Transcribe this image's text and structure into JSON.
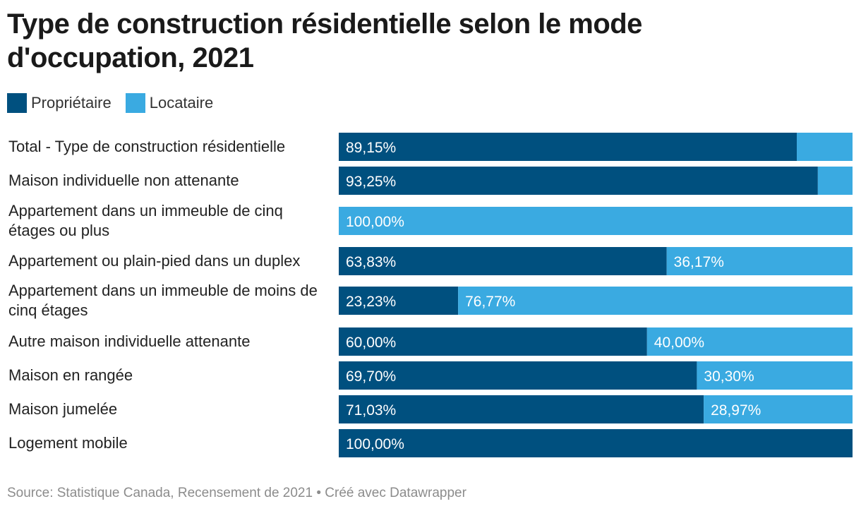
{
  "title": "Type de construction résidentielle selon le mode d'occupation, 2021",
  "legend": [
    {
      "label": "Propriétaire",
      "color": "#00507f"
    },
    {
      "label": "Locataire",
      "color": "#3aaae1"
    }
  ],
  "source": "Source: Statistique Canada, Recensement de 2021 • Créé avec Datawrapper",
  "chart_data": {
    "type": "bar",
    "orientation": "horizontal",
    "stacked": true,
    "percent_stacked": true,
    "categories": [
      "Total - Type de construction résidentielle",
      "Maison individuelle non attenante",
      "Appartement dans un immeuble de cinq étages ou plus",
      "Appartement ou plain-pied dans un duplex",
      "Appartement dans un immeuble de moins de cinq étages",
      "Autre maison individuelle attenante",
      "Maison en rangée",
      "Maison jumelée",
      "Logement mobile"
    ],
    "series": [
      {
        "name": "Propriétaire",
        "color": "#00507f",
        "values": [
          89.15,
          93.25,
          0,
          63.83,
          23.23,
          60.0,
          69.7,
          71.03,
          100.0
        ],
        "labels": [
          "89,15%",
          "93,25%",
          "",
          "63,83%",
          "23,23%",
          "60,00%",
          "69,70%",
          "71,03%",
          "100,00%"
        ]
      },
      {
        "name": "Locataire",
        "color": "#3aaae1",
        "values": [
          10.85,
          6.75,
          100.0,
          36.17,
          76.77,
          40.0,
          30.3,
          28.97,
          0
        ],
        "labels": [
          "",
          "",
          "100,00%",
          "36,17%",
          "76,77%",
          "40,00%",
          "30,30%",
          "28,97%",
          ""
        ]
      }
    ],
    "xlim": [
      0,
      100
    ],
    "grid": false,
    "legend_position": "top-left"
  }
}
